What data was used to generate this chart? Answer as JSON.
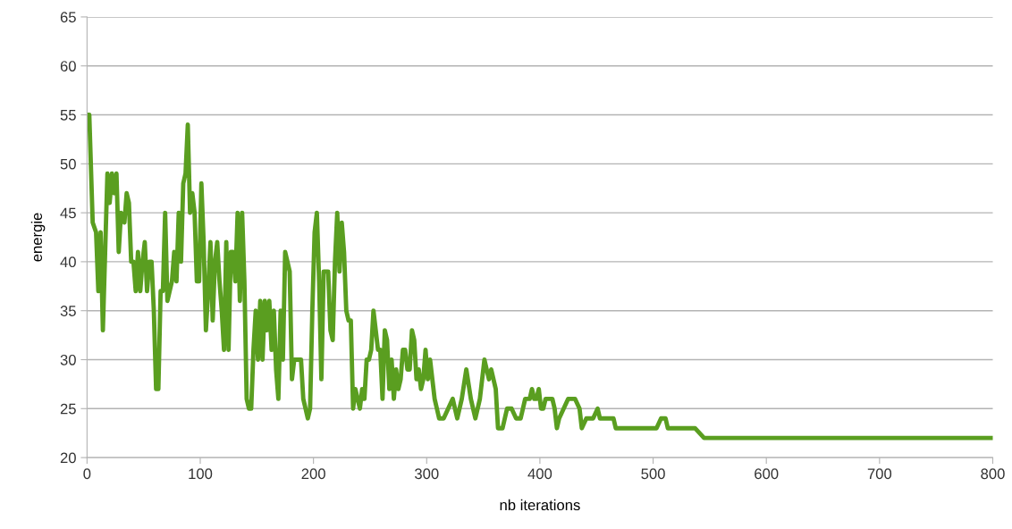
{
  "chart_data": {
    "type": "line",
    "xlabel": "nb iterations",
    "ylabel": "energie",
    "xlim": [
      0,
      800
    ],
    "xticks": [
      0,
      100,
      200,
      300,
      400,
      500,
      600,
      700,
      800
    ],
    "ylim": [
      20,
      65
    ],
    "yticks": [
      20,
      25,
      30,
      35,
      40,
      45,
      50,
      55,
      60,
      65
    ],
    "grid": "y",
    "legend": false,
    "marker": "none",
    "line_style": "solid",
    "series": [
      {
        "color": "#5a9e20",
        "x": [
          0,
          2,
          5,
          8,
          10,
          12,
          14,
          16,
          18,
          20,
          22,
          24,
          26,
          28,
          30,
          33,
          35,
          37,
          39,
          41,
          43,
          45,
          47,
          49,
          51,
          53,
          55,
          57,
          59,
          61,
          63,
          65,
          67,
          69,
          71,
          73,
          75,
          77,
          79,
          81,
          83,
          85,
          87,
          89,
          91,
          93,
          95,
          97,
          99,
          101,
          103,
          105,
          107,
          109,
          111,
          113,
          115,
          117,
          119,
          121,
          123,
          125,
          127,
          129,
          131,
          133,
          135,
          137,
          139,
          141,
          143,
          145,
          147,
          149,
          151,
          153,
          155,
          157,
          159,
          161,
          163,
          165,
          167,
          169,
          171,
          173,
          175,
          177,
          179,
          181,
          183,
          185,
          189,
          191,
          193,
          195,
          197,
          199,
          201,
          203,
          205,
          207,
          209,
          213,
          215,
          217,
          219,
          221,
          223,
          225,
          227,
          229,
          231,
          233,
          235,
          237,
          239,
          241,
          243,
          245,
          247,
          249,
          251,
          253,
          255,
          257,
          259,
          261,
          263,
          265,
          267,
          269,
          271,
          273,
          275,
          277,
          279,
          281,
          283,
          285,
          287,
          289,
          291,
          293,
          295,
          297,
          299,
          301,
          303,
          305,
          307,
          309,
          311,
          315,
          319,
          323,
          327,
          331,
          335,
          339,
          343,
          347,
          351,
          353,
          355,
          357,
          361,
          363,
          367,
          371,
          375,
          379,
          383,
          387,
          391,
          393,
          395,
          397,
          399,
          401,
          403,
          405,
          411,
          413,
          415,
          417,
          421,
          425,
          431,
          435,
          437,
          441,
          443,
          447,
          451,
          453,
          465,
          467,
          503,
          507,
          511,
          513,
          537,
          545,
          800
        ],
        "values": [
          55,
          55,
          44,
          43,
          37,
          43,
          33,
          41,
          49,
          46,
          49,
          47,
          49,
          41,
          45,
          44,
          47,
          46,
          40,
          40,
          37,
          41,
          37,
          40,
          42,
          37,
          40,
          40,
          35,
          27,
          27,
          37,
          37,
          45,
          36,
          37,
          38,
          41,
          38,
          45,
          40,
          48,
          49,
          54,
          45,
          47,
          45,
          38,
          38,
          48,
          42,
          33,
          37,
          42,
          34,
          40,
          42,
          38,
          35,
          31,
          42,
          31,
          41,
          41,
          38,
          45,
          36,
          45,
          38,
          26,
          25,
          25,
          31,
          35,
          30,
          36,
          30,
          36,
          33,
          36,
          31,
          35,
          29,
          26,
          35,
          30,
          41,
          40,
          39,
          28,
          30,
          30,
          30,
          26,
          25,
          24,
          25,
          35,
          43,
          45,
          38,
          28,
          39,
          39,
          33,
          32,
          40,
          45,
          39,
          44,
          41,
          35,
          34,
          34,
          25,
          27,
          26,
          25,
          27,
          26,
          30,
          30,
          31,
          35,
          33,
          31,
          31,
          26,
          33,
          32,
          27,
          30,
          26,
          29,
          27,
          28,
          31,
          31,
          29,
          29,
          33,
          32,
          28,
          29,
          27,
          28,
          31,
          28,
          30,
          28,
          26,
          25,
          24,
          24,
          25,
          26,
          24,
          26,
          29,
          26,
          24,
          26,
          30,
          29,
          28,
          29,
          27,
          23,
          23,
          25,
          25,
          24,
          24,
          26,
          26,
          27,
          26,
          26,
          27,
          25,
          25,
          26,
          26,
          25,
          23,
          24,
          25,
          26,
          26,
          25,
          23,
          24,
          24,
          24,
          25,
          24,
          24,
          23,
          23,
          24,
          24,
          23,
          23,
          22,
          22
        ]
      }
    ]
  }
}
